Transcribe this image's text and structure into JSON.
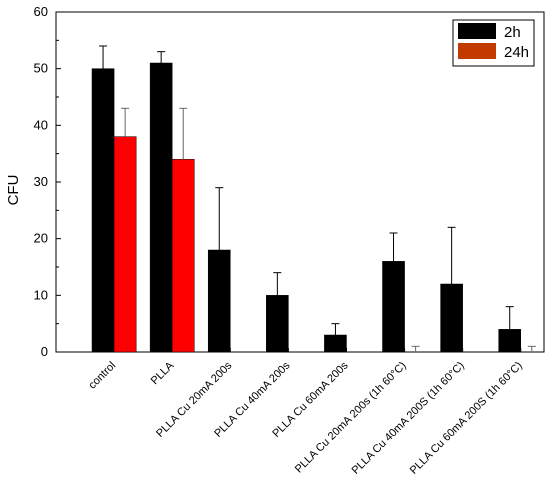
{
  "chart_data": {
    "type": "bar",
    "title": "",
    "xlabel": "",
    "ylabel": "CFU",
    "ylim": [
      0,
      60
    ],
    "yticks": [
      "0",
      "10",
      "20",
      "30",
      "40",
      "50",
      "60"
    ],
    "grid": false,
    "legend_position": "top-right",
    "categories": [
      "control",
      "PLLA",
      "PLLA Cu 20mA 200s",
      "PLLA Cu 40mA 200s",
      "PLLA Cu 60mA 200s",
      "PLLA Cu 20mA 200s (1h 60°C)",
      "PLLA Cu 40mA 200S (1h 60°C)",
      "PLLA Cu 60mA 200S (1h 60°C)"
    ],
    "series": [
      {
        "name": "2h",
        "color": "#000000",
        "values": [
          50,
          51,
          18,
          10,
          3,
          16,
          12,
          4
        ],
        "errors": [
          4,
          2,
          11,
          4,
          2,
          5,
          10,
          4
        ]
      },
      {
        "name": "24h",
        "color": "#ff0000",
        "values": [
          38,
          34,
          0,
          0,
          0,
          0,
          0,
          0
        ],
        "errors": [
          5,
          9,
          0,
          0,
          0,
          1,
          0,
          1
        ]
      }
    ]
  }
}
